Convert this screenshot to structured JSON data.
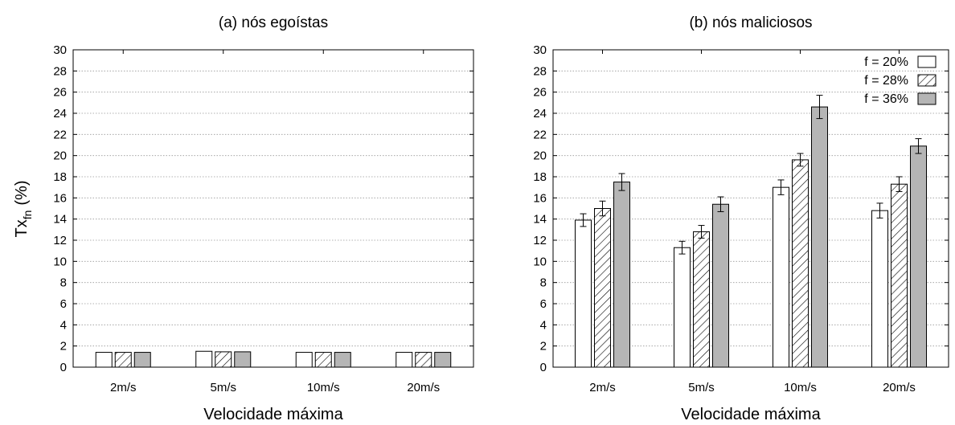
{
  "ylabel_base": "Tx",
  "ylabel_sub": "fn",
  "ylabel_unit": "(%)",
  "chart_data": [
    {
      "type": "bar",
      "title": "(a) nós egoístas",
      "xlabel": "Velocidade máxima",
      "ylabel": "Tx_fn (%)",
      "ylim": [
        0,
        30
      ],
      "yticks": [
        0,
        2,
        4,
        6,
        8,
        10,
        12,
        14,
        16,
        18,
        20,
        22,
        24,
        26,
        28,
        30
      ],
      "grid": true,
      "categories": [
        "2m/s",
        "5m/s",
        "10m/s",
        "20m/s"
      ],
      "series": [
        {
          "fill": "white",
          "values": [
            1.4,
            1.5,
            1.4,
            1.4
          ],
          "errors": [
            0.05,
            0.05,
            0.05,
            0.05
          ]
        },
        {
          "fill": "hatch",
          "values": [
            1.4,
            1.45,
            1.4,
            1.4
          ],
          "errors": [
            0.05,
            0.05,
            0.05,
            0.05
          ]
        },
        {
          "fill": "gray",
          "values": [
            1.4,
            1.45,
            1.4,
            1.4
          ],
          "errors": [
            0.05,
            0.05,
            0.05,
            0.05
          ]
        }
      ]
    },
    {
      "type": "bar",
      "title": "(b) nós maliciosos",
      "xlabel": "Velocidade máxima",
      "ylim": [
        0,
        30
      ],
      "yticks": [
        0,
        2,
        4,
        6,
        8,
        10,
        12,
        14,
        16,
        18,
        20,
        22,
        24,
        26,
        28,
        30
      ],
      "grid": true,
      "legend": "top-right",
      "categories": [
        "2m/s",
        "5m/s",
        "10m/s",
        "20m/s"
      ],
      "series": [
        {
          "name": "f = 20%",
          "fill": "white",
          "values": [
            13.9,
            11.3,
            17.0,
            14.8
          ],
          "errors": [
            0.6,
            0.6,
            0.7,
            0.7
          ]
        },
        {
          "name": "f = 28%",
          "fill": "hatch",
          "values": [
            15.0,
            12.8,
            19.6,
            17.3
          ],
          "errors": [
            0.7,
            0.6,
            0.6,
            0.7
          ]
        },
        {
          "name": "f = 36%",
          "fill": "gray",
          "values": [
            17.5,
            15.4,
            24.6,
            20.9
          ],
          "errors": [
            0.8,
            0.7,
            1.1,
            0.7
          ]
        }
      ]
    }
  ],
  "colors": {
    "gray": "#b5b5b5",
    "white": "#ffffff",
    "stroke": "#000000"
  }
}
